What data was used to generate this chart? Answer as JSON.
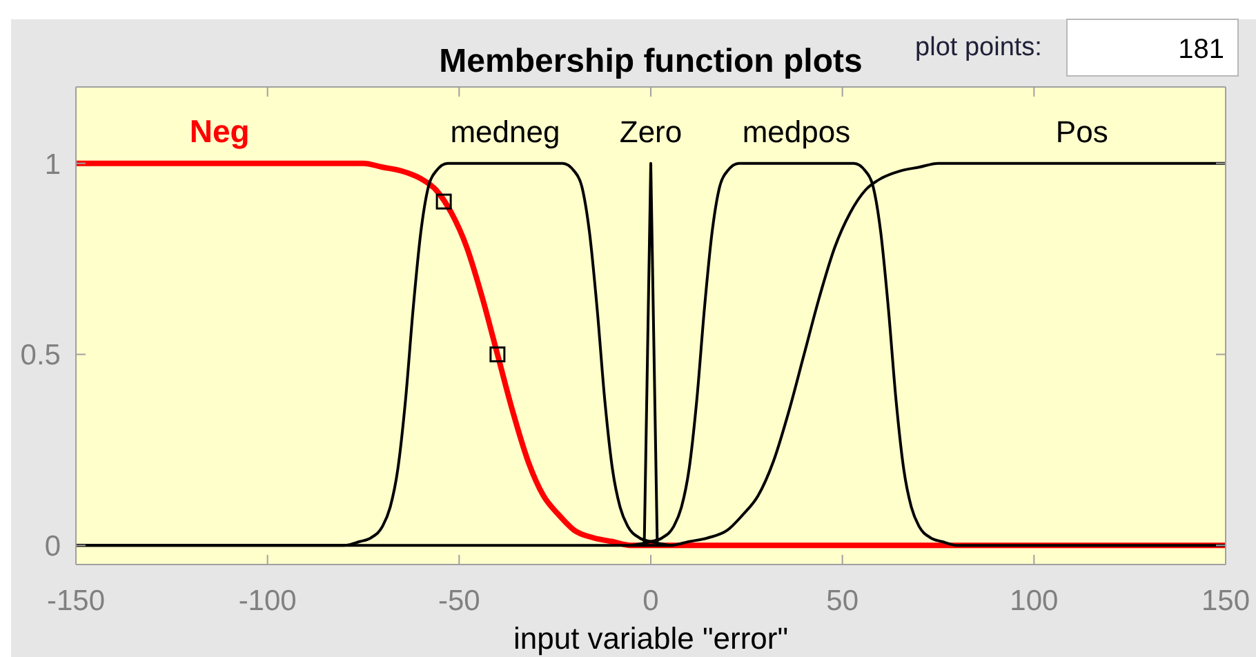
{
  "chart_data": {
    "type": "line",
    "title": "Membership function plots",
    "xlabel": "input variable \"error\"",
    "annotations": [
      "plot points:",
      "181"
    ],
    "xlim": [
      -150,
      150
    ],
    "xticks": [
      -150,
      -100,
      -50,
      0,
      50,
      100,
      150
    ],
    "ylim": [
      -0.05,
      1.2
    ],
    "yticks": [
      0,
      0.5,
      1
    ],
    "legend": false,
    "line_style": "solid",
    "series": [
      {
        "name": "Neg",
        "color": "#ff0000",
        "x": [
          -150,
          -100,
          -90,
          -80,
          -75,
          -70,
          -65,
          -60,
          -56,
          -52,
          -48,
          -44,
          -40,
          -36,
          -32,
          -28,
          -24,
          -20,
          -15,
          -10,
          -5,
          0,
          150
        ],
        "values": [
          1,
          1,
          1,
          1,
          1,
          0.99,
          0.98,
          0.96,
          0.93,
          0.87,
          0.78,
          0.65,
          0.5,
          0.35,
          0.22,
          0.13,
          0.08,
          0.04,
          0.02,
          0.01,
          0,
          0,
          0
        ]
      },
      {
        "name": "medneg",
        "color": "#000000",
        "x": [
          -150,
          -90,
          -80,
          -76,
          -73,
          -70,
          -68,
          -66,
          -64,
          -62,
          -60,
          -58,
          -56,
          -53,
          -38,
          -23,
          -20,
          -18,
          -16,
          -14,
          -12,
          -10,
          -8,
          -6,
          -3,
          0,
          5
        ],
        "values": [
          0,
          0,
          0,
          0.01,
          0.02,
          0.05,
          0.1,
          0.2,
          0.38,
          0.62,
          0.82,
          0.94,
          0.98,
          1,
          1,
          1,
          0.98,
          0.94,
          0.82,
          0.62,
          0.38,
          0.2,
          0.1,
          0.05,
          0.02,
          0.01,
          0
        ]
      },
      {
        "name": "Zero",
        "color": "#000000",
        "x": [
          -1.7,
          0,
          1.7
        ],
        "values": [
          0,
          1,
          0
        ]
      },
      {
        "name": "medpos",
        "color": "#000000",
        "x": [
          -5,
          0,
          3,
          6,
          8,
          10,
          12,
          14,
          16,
          18,
          20,
          23,
          38,
          53,
          56,
          58,
          60,
          62,
          64,
          66,
          68,
          70,
          73,
          76,
          80,
          90,
          150
        ],
        "values": [
          0,
          0.01,
          0.02,
          0.05,
          0.1,
          0.2,
          0.38,
          0.62,
          0.82,
          0.94,
          0.98,
          1,
          1,
          1,
          0.98,
          0.94,
          0.82,
          0.62,
          0.38,
          0.2,
          0.1,
          0.05,
          0.02,
          0.01,
          0,
          0,
          0
        ]
      },
      {
        "name": "Pos",
        "color": "#000000",
        "x": [
          -150,
          0,
          5,
          10,
          15,
          20,
          24,
          28,
          32,
          36,
          40,
          44,
          48,
          52,
          56,
          60,
          65,
          70,
          75,
          80,
          90,
          100,
          150
        ],
        "values": [
          0,
          0,
          0,
          0.01,
          0.02,
          0.04,
          0.08,
          0.13,
          0.22,
          0.35,
          0.5,
          0.65,
          0.78,
          0.87,
          0.93,
          0.96,
          0.98,
          0.99,
          1,
          1,
          1,
          1,
          1
        ]
      },
      {
        "type": "scatter",
        "color": "#000000",
        "marker": "square",
        "x": [
          -54,
          -40
        ],
        "values": [
          0.9,
          0.5
        ]
      }
    ]
  }
}
